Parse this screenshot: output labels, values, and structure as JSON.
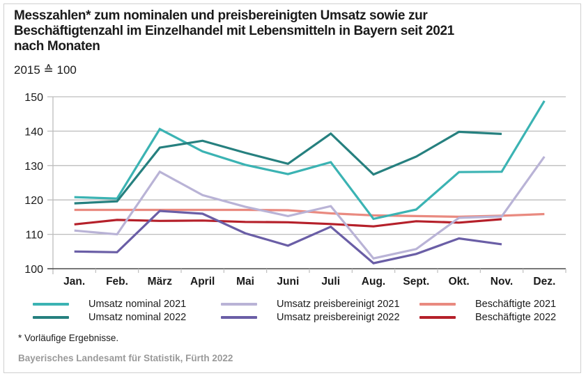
{
  "chart_data": {
    "type": "line",
    "title": "Messzahlen* zum nominalen und preisbereinigten Umsatz sowie zur Beschäftigtenzahl im Einzelhandel mit Lebensmitteln in Bayern seit 2021 nach Monaten",
    "title_lines": [
      "Messzahlen* zum nominalen und preisbereinigten Umsatz sowie zur",
      "Beschäftigtenzahl im Einzelhandel mit Lebensmitteln in Bayern seit 2021",
      "nach Monaten"
    ],
    "subtitle": "2015 ≙ 100",
    "xlabel": "",
    "ylabel": "",
    "categories": [
      "Jan.",
      "Feb.",
      "März",
      "April",
      "Mai",
      "Juni",
      "Juli",
      "Aug.",
      "Sept.",
      "Okt.",
      "Nov.",
      "Dez."
    ],
    "ylim": [
      100,
      150
    ],
    "yticks": [
      100,
      110,
      120,
      130,
      140,
      150
    ],
    "grid": true,
    "legend_position": "bottom",
    "series": [
      {
        "name": "Umsatz nominal 2021",
        "color": "#3bb3b3",
        "values": [
          120.8,
          120.4,
          140.6,
          134.1,
          130.2,
          127.5,
          131.0,
          114.5,
          117.2,
          128.1,
          128.2,
          148.8
        ]
      },
      {
        "name": "Umsatz nominal 2022",
        "color": "#26807f",
        "values": [
          119.0,
          119.6,
          135.2,
          137.2,
          133.7,
          130.5,
          139.3,
          127.4,
          132.6,
          139.8,
          139.2,
          null
        ]
      },
      {
        "name": "Umsatz preisbereinigt 2021",
        "color": "#b9b3d6",
        "values": [
          111.1,
          110.0,
          128.2,
          121.4,
          118.0,
          115.3,
          118.2,
          103.0,
          105.7,
          114.8,
          115.2,
          132.6
        ]
      },
      {
        "name": "Umsatz preisbereinigt 2022",
        "color": "#6a5ea6",
        "values": [
          105.0,
          104.8,
          116.8,
          116.0,
          110.3,
          106.7,
          112.2,
          101.6,
          104.3,
          108.8,
          107.1,
          null
        ]
      },
      {
        "name": "Beschäftigte 2021",
        "color": "#e98a80",
        "values": [
          117.1,
          117.1,
          117.1,
          117.1,
          117.1,
          117.0,
          116.1,
          115.5,
          115.3,
          115.1,
          115.4,
          115.9
        ]
      },
      {
        "name": "Beschäftigte 2022",
        "color": "#b5202a",
        "values": [
          112.9,
          114.2,
          113.9,
          114.0,
          113.6,
          113.5,
          113.0,
          112.3,
          113.8,
          113.4,
          114.4,
          null
        ]
      }
    ],
    "footnote": "* Vorläufige Ergebnisse.",
    "source": "Bayerisches Landesamt für Statistik, Fürth 2022"
  }
}
